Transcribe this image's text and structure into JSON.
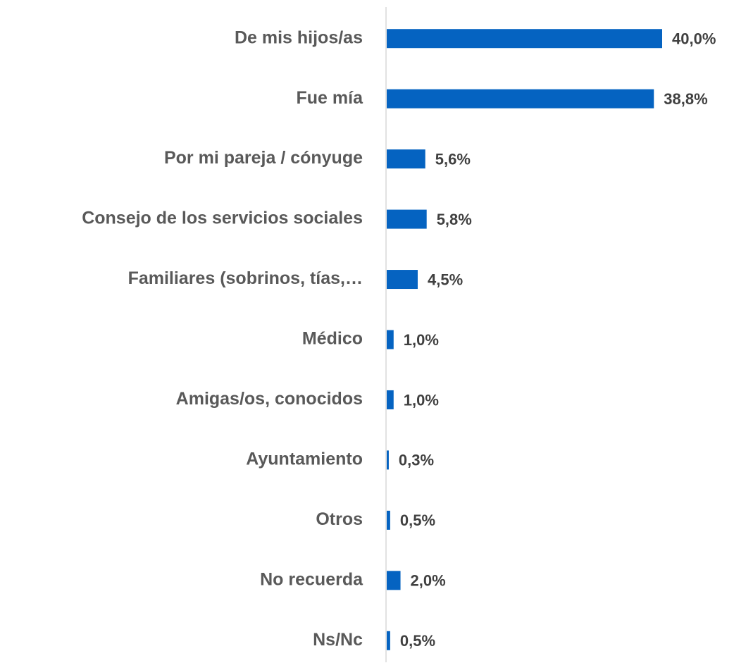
{
  "chart_data": {
    "type": "bar",
    "orientation": "horizontal",
    "categories": [
      "De mis hijos/as",
      "Fue mía",
      "Por mi pareja / cónyuge",
      "Consejo de los servicios sociales",
      "Familiares (sobrinos, tías,…",
      "Médico",
      "Amigas/os, conocidos",
      "Ayuntamiento",
      "Otros",
      "No recuerda",
      "Ns/Nc"
    ],
    "values": [
      40.0,
      38.8,
      5.6,
      5.8,
      4.5,
      1.0,
      1.0,
      0.3,
      0.5,
      2.0,
      0.5
    ],
    "value_labels": [
      "40,0%",
      "38,8%",
      "5,6%",
      "5,8%",
      "4,5%",
      "1,0%",
      "1,0%",
      "0,3%",
      "0,5%",
      "2,0%",
      "0,5%"
    ],
    "color": "#0563c1",
    "xlim": [
      0,
      40
    ]
  }
}
